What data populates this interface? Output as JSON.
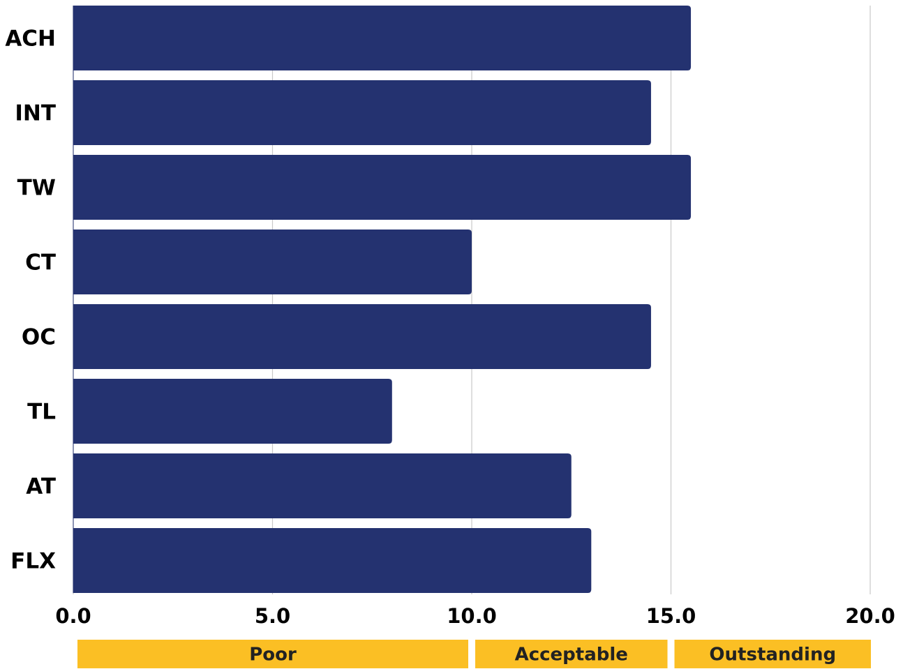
{
  "chart_data": {
    "type": "bar",
    "orientation": "horizontal",
    "categories": [
      "ACH",
      "INT",
      "TW",
      "CT",
      "OC",
      "TL",
      "AT",
      "FLX"
    ],
    "values": [
      15.5,
      14.5,
      15.5,
      10.0,
      14.5,
      8.0,
      12.5,
      13.0
    ],
    "xlim": [
      0,
      20
    ],
    "xticks": [
      "0.0",
      "5.0",
      "10.0",
      "15.0",
      "20.0"
    ],
    "grid": "vertical",
    "legend": "none",
    "colors": {
      "bar": "#243270",
      "grid": "#c8c8c8",
      "band": "#fbbf24"
    },
    "bands": [
      {
        "label": "Poor",
        "from": 0,
        "to": 10
      },
      {
        "label": "Acceptable",
        "from": 10,
        "to": 15
      },
      {
        "label": "Outstanding",
        "from": 15,
        "to": 20
      }
    ]
  }
}
